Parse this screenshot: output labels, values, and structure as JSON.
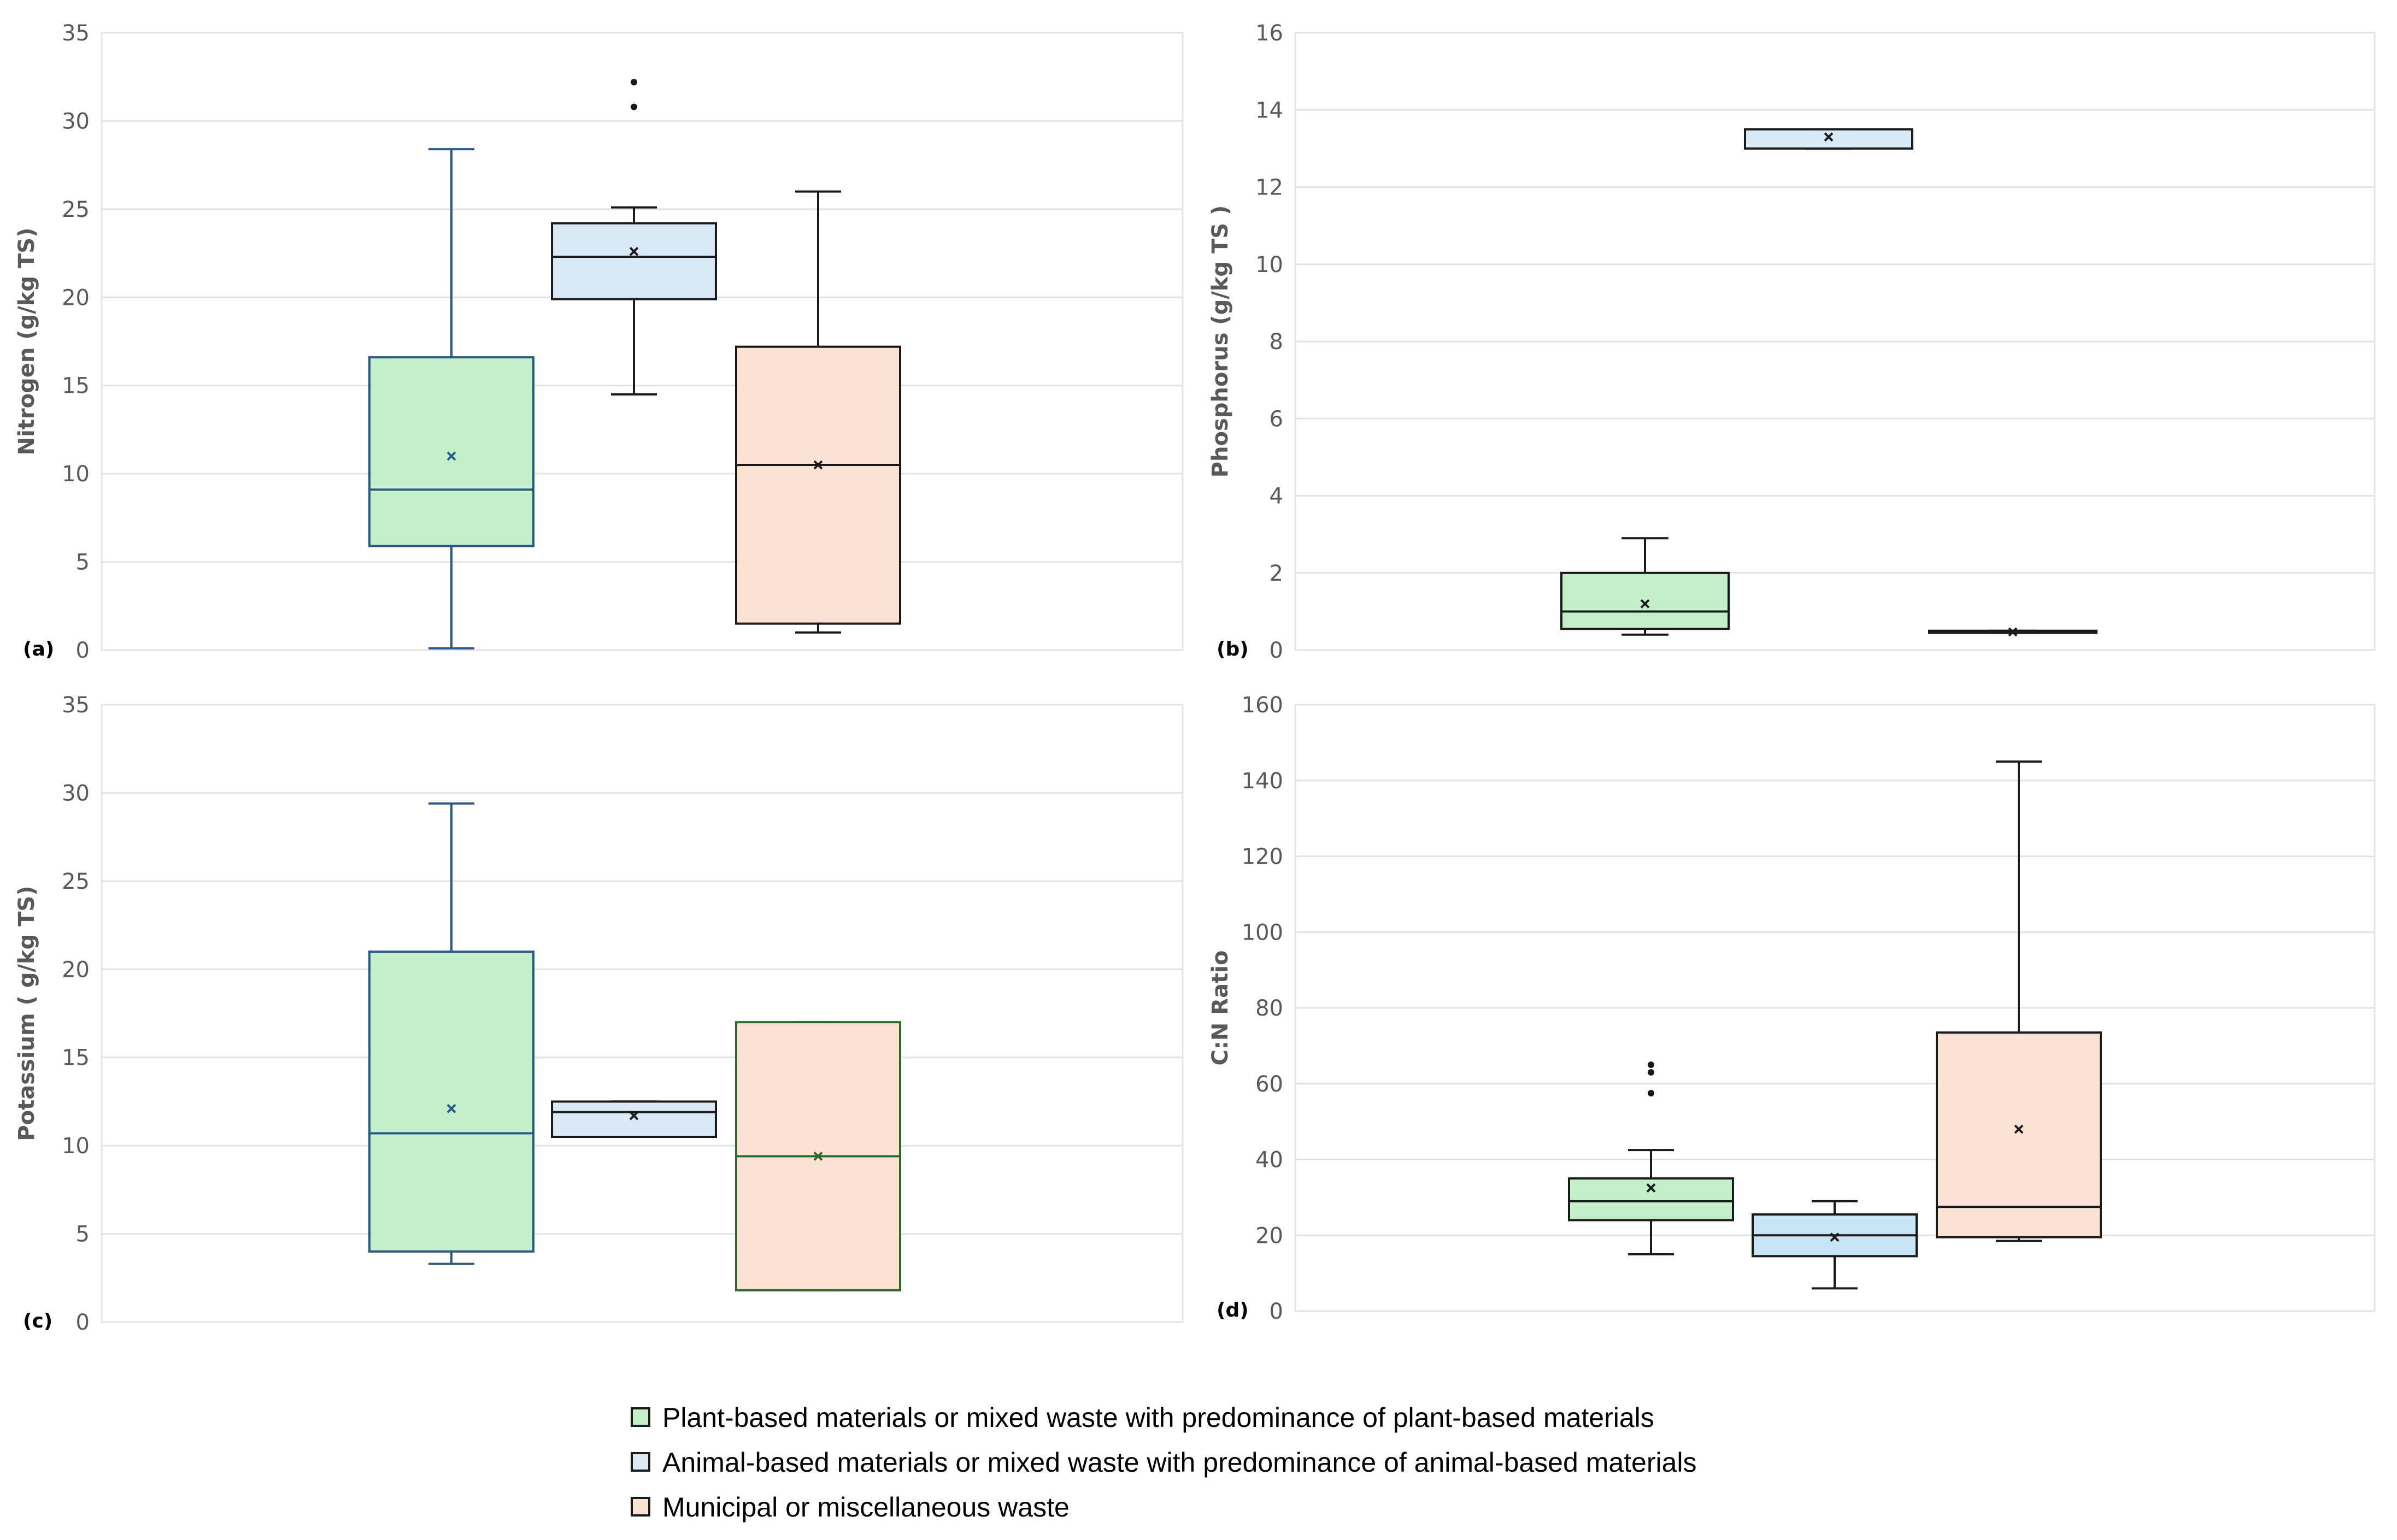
{
  "legend": [
    {
      "label": "Plant-based materials or mixed waste with predominance of plant-based materials",
      "color": "#c3f0c8"
    },
    {
      "label": "Animal-based materials or mixed waste with predominance of animal-based materials",
      "color": "#dbe9f7"
    },
    {
      "label": "Municipal or miscellaneous waste",
      "color": "#fbe2d5"
    }
  ],
  "chart_data": [
    {
      "type": "box",
      "panel_label": "(a)",
      "ylabel": "Nitrogen (g/kg TS)",
      "ylim": [
        0,
        35
      ],
      "yticks": [
        0,
        5,
        10,
        15,
        20,
        25,
        30,
        35
      ],
      "grid": true,
      "series": [
        {
          "name": "Plant-based materials or mixed waste with predominance of plant-based materials",
          "min": 0.1,
          "q1": 5.9,
          "median": 9.1,
          "q3": 16.6,
          "max": 28.4,
          "mean": 11.0,
          "outliers": [],
          "fill": "#c3f0c8",
          "stroke": "#2a5a8c"
        },
        {
          "name": "Animal-based materials or mixed waste with predominance of animal-based materials",
          "min": 14.5,
          "q1": 19.9,
          "median": 22.3,
          "q3": 24.2,
          "max": 25.1,
          "mean": 22.6,
          "outliers": [
            30.8,
            32.2
          ],
          "fill": "#dbe9f7",
          "stroke": "#1a1a1a"
        },
        {
          "name": "Municipal or miscellaneous waste",
          "min": 1.0,
          "q1": 1.5,
          "median": 10.5,
          "q3": 17.2,
          "max": 26.0,
          "mean": 10.5,
          "outliers": [],
          "fill": "#fbe2d5",
          "stroke": "#1a1a1a"
        }
      ]
    },
    {
      "type": "box",
      "panel_label": "(b)",
      "ylabel": "Phosphorus (g/kg TS )",
      "ylim": [
        0,
        16
      ],
      "yticks": [
        0,
        2,
        4,
        6,
        8,
        10,
        12,
        14,
        16
      ],
      "grid": true,
      "series": [
        {
          "name": "Plant-based materials or mixed waste with predominance of plant-based materials",
          "min": 0.4,
          "q1": 0.55,
          "median": 1.0,
          "q3": 2.0,
          "max": 2.9,
          "mean": 1.2,
          "outliers": [],
          "fill": "#c3f0c8",
          "stroke": "#1a1a1a"
        },
        {
          "name": "Animal-based materials or mixed waste with predominance of animal-based materials",
          "min": 13.0,
          "q1": 13.0,
          "median": 13.5,
          "q3": 13.5,
          "max": 13.5,
          "mean": 13.3,
          "outliers": [],
          "fill": "#dbe9f7",
          "stroke": "#1a1a1a"
        },
        {
          "name": "Municipal or miscellaneous waste",
          "min": 0.45,
          "q1": 0.45,
          "median": 0.45,
          "q3": 0.5,
          "max": 0.5,
          "mean": 0.47,
          "outliers": [],
          "fill": "#fbe2d5",
          "stroke": "#1a1a1a"
        }
      ]
    },
    {
      "type": "box",
      "panel_label": "(c)",
      "ylabel": "Potassium ( g/kg TS)",
      "ylim": [
        0,
        35
      ],
      "yticks": [
        0,
        5,
        10,
        15,
        20,
        25,
        30,
        35
      ],
      "grid": true,
      "series": [
        {
          "name": "Plant-based materials or mixed waste with predominance of plant-based materials",
          "min": 3.3,
          "q1": 4.0,
          "median": 10.7,
          "q3": 21.0,
          "max": 29.4,
          "mean": 12.1,
          "outliers": [],
          "fill": "#c3f0c8",
          "stroke": "#2a5a8c"
        },
        {
          "name": "Animal-based materials or mixed waste with predominance of animal-based materials",
          "min": 10.5,
          "q1": 10.5,
          "median": 11.9,
          "q3": 12.5,
          "max": 12.5,
          "mean": 11.7,
          "outliers": [],
          "fill": "#dbe9f7",
          "stroke": "#1a1a1a"
        },
        {
          "name": "Municipal or miscellaneous waste",
          "min": 1.8,
          "q1": 1.8,
          "median": 9.4,
          "q3": 17.0,
          "max": 17.0,
          "mean": 9.4,
          "outliers": [],
          "fill": "#fbe2d5",
          "stroke": "#2e6a2e"
        }
      ]
    },
    {
      "type": "box",
      "panel_label": "(d)",
      "ylabel": "C:N Ratio",
      "ylim": [
        0,
        160
      ],
      "yticks": [
        0,
        20,
        40,
        60,
        80,
        100,
        120,
        140,
        160
      ],
      "grid": true,
      "series": [
        {
          "name": "Plant-based materials or mixed waste with predominance of plant-based materials",
          "min": 15,
          "q1": 24,
          "median": 29,
          "q3": 35,
          "max": 42.5,
          "mean": 32.5,
          "outliers": [
            57.5,
            63,
            65
          ],
          "fill": "#c3f0c8",
          "stroke": "#1a1a1a"
        },
        {
          "name": "Animal-based materials or mixed waste with predominance of animal-based materials",
          "min": 6,
          "q1": 14.5,
          "median": 20,
          "q3": 25.5,
          "max": 29,
          "mean": 19.5,
          "outliers": [],
          "fill": "#c7e4f5",
          "stroke": "#1a1a1a"
        },
        {
          "name": "Municipal or miscellaneous waste",
          "min": 18.5,
          "q1": 19.5,
          "median": 27.5,
          "q3": 73.5,
          "max": 145,
          "mean": 48,
          "outliers": [],
          "fill": "#fbe2d5",
          "stroke": "#1a1a1a"
        }
      ]
    }
  ]
}
